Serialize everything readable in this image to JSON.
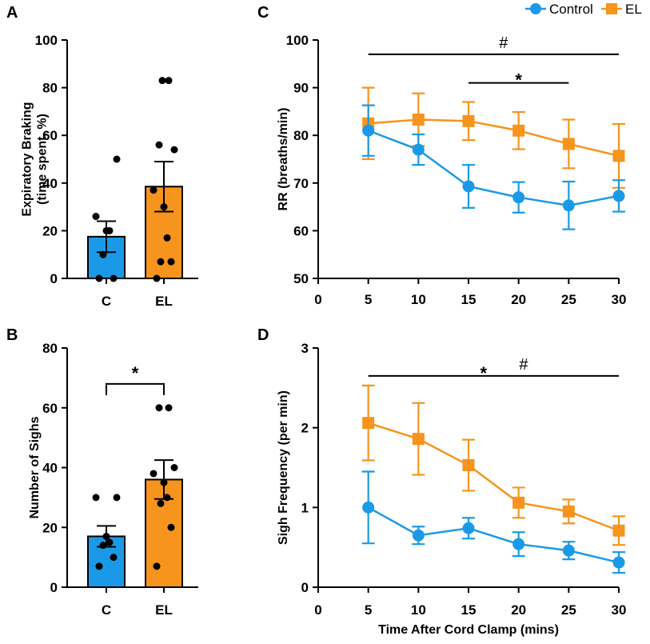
{
  "colors": {
    "control": "#1a9ae6",
    "el": "#f7941d",
    "axis": "#000000"
  },
  "legend": {
    "items": [
      {
        "label": "Control",
        "marker": "circle",
        "color": "#1a9ae6"
      },
      {
        "label": "EL",
        "marker": "square",
        "color": "#f7941d"
      }
    ]
  },
  "chart_data": [
    {
      "id": "A",
      "panel": "A",
      "type": "bar",
      "ylabel_lines": [
        "Expiratory Braking",
        "(time spent, %)"
      ],
      "ylim": [
        0,
        100
      ],
      "yticks": [
        0,
        20,
        40,
        60,
        80,
        100
      ],
      "categories": [
        "C",
        "EL"
      ],
      "bars": [
        {
          "category": "C",
          "mean": 17.5,
          "sem": 6.5,
          "color": "#1a9ae6",
          "points": [
            0,
            0,
            10,
            20,
            20,
            26,
            50
          ]
        },
        {
          "category": "EL",
          "mean": 38.5,
          "sem": 10.5,
          "color": "#f7941d",
          "points": [
            0,
            7,
            7,
            17,
            30,
            37,
            54,
            56,
            83,
            83
          ]
        }
      ],
      "significance": []
    },
    {
      "id": "B",
      "panel": "B",
      "type": "bar",
      "ylabel_lines": [
        "Number of Sighs"
      ],
      "ylim": [
        0,
        80
      ],
      "yticks": [
        0,
        20,
        40,
        60,
        80
      ],
      "categories": [
        "C",
        "EL"
      ],
      "bars": [
        {
          "category": "C",
          "mean": 17,
          "sem": 3.5,
          "color": "#1a9ae6",
          "points": [
            7,
            10,
            14,
            15,
            17,
            30,
            30
          ]
        },
        {
          "category": "EL",
          "mean": 36,
          "sem": 6.5,
          "color": "#f7941d",
          "points": [
            7,
            20,
            28,
            30,
            35,
            38,
            40,
            60,
            60
          ]
        }
      ],
      "significance": [
        {
          "from": "C",
          "to": "EL",
          "y": 68,
          "label": "*"
        }
      ]
    },
    {
      "id": "C",
      "panel": "C",
      "type": "line",
      "ylabel": "RR (breaths/min)",
      "xlabel": "",
      "xlim": [
        0,
        30
      ],
      "xticks": [
        0,
        5,
        10,
        15,
        20,
        25,
        30
      ],
      "ylim": [
        50,
        100
      ],
      "yticks": [
        50,
        60,
        70,
        80,
        90,
        100
      ],
      "x": [
        5,
        10,
        15,
        20,
        25,
        30
      ],
      "series": [
        {
          "name": "Control",
          "marker": "circle",
          "color": "#1a9ae6",
          "values": [
            81,
            77,
            69.3,
            67,
            65.3,
            67.3
          ],
          "errors": [
            5.3,
            3.2,
            4.5,
            3.2,
            5,
            3.3
          ]
        },
        {
          "name": "EL",
          "marker": "square",
          "color": "#f7941d",
          "values": [
            82.5,
            83.3,
            83,
            81,
            78.2,
            75.7
          ],
          "errors": [
            7.5,
            5.5,
            4,
            3.9,
            5.1,
            6.7
          ]
        }
      ],
      "significance": [
        {
          "x1": 5,
          "x2": 30,
          "y": 97,
          "label": "#",
          "label_x": 18.5
        },
        {
          "x1": 15,
          "x2": 25,
          "y": 91,
          "label": "*",
          "label_x": 20
        }
      ]
    },
    {
      "id": "D",
      "panel": "D",
      "type": "line",
      "ylabel": "Sigh Frequency (per min)",
      "xlabel": "Time After Cord Clamp (mins)",
      "xlim": [
        0,
        30
      ],
      "xticks": [
        0,
        5,
        10,
        15,
        20,
        25,
        30
      ],
      "ylim": [
        0,
        3
      ],
      "yticks": [
        0,
        1,
        2,
        3
      ],
      "x": [
        5,
        10,
        15,
        20,
        25,
        30
      ],
      "series": [
        {
          "name": "Control",
          "marker": "circle",
          "color": "#1a9ae6",
          "values": [
            1,
            0.65,
            0.74,
            0.54,
            0.46,
            0.31
          ],
          "errors": [
            0.45,
            0.11,
            0.13,
            0.15,
            0.11,
            0.13
          ]
        },
        {
          "name": "EL",
          "marker": "square",
          "color": "#f7941d",
          "values": [
            2.06,
            1.86,
            1.53,
            1.06,
            0.95,
            0.71
          ],
          "errors": [
            0.47,
            0.45,
            0.32,
            0.19,
            0.15,
            0.18
          ]
        }
      ],
      "significance": [
        {
          "x1": 5,
          "x2": 30,
          "y": 2.65,
          "label": "*",
          "label_x": 16.5
        },
        {
          "x1": 5,
          "x2": 30,
          "y": 2.65,
          "label": "#",
          "label_x": 20.5,
          "no_line": true
        }
      ]
    }
  ]
}
